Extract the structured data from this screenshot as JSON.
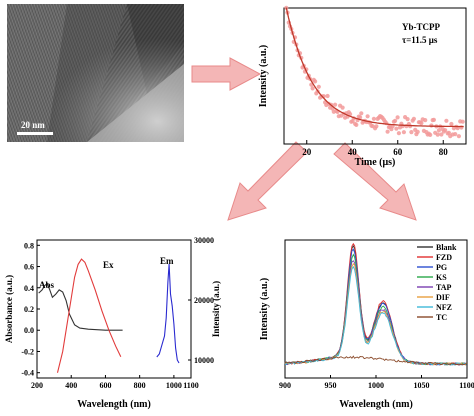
{
  "colors": {
    "arrow_fill": "#f4b6b6",
    "arrow_stroke": "#e88a8a",
    "decay_points": "#f29a9a",
    "decay_fit": "#c0392b",
    "abs": "#333333",
    "ex": "#e23b3b",
    "em": "#2a2ad0"
  },
  "tem_panel": {
    "scalebar_label": "20 nm"
  },
  "decay_panel": {
    "chart_data": {
      "type": "scatter",
      "title": "",
      "xlabel": "Time (μs)",
      "ylabel": "Intensity (a.u.)",
      "xlim": [
        10,
        90
      ],
      "xticks": [
        "20",
        "40",
        "60",
        "80"
      ],
      "annotations": [
        "Yb-TCPP",
        "τ=11.5 μs"
      ],
      "series": [
        {
          "values": [
            [
              12,
              1.0
            ],
            [
              20,
              0.55
            ],
            [
              30,
              0.32
            ],
            [
              40,
              0.19
            ],
            [
              50,
              0.12
            ],
            [
              60,
              0.07
            ],
            [
              70,
              0.05
            ],
            [
              80,
              0.04
            ],
            [
              88,
              0.03
            ]
          ]
        }
      ]
    }
  },
  "absem_panel": {
    "chart_data": {
      "type": "line",
      "xlabel": "Wavelength (nm)",
      "ylabel_left": "Absorbance (a.u.)",
      "ylabel_right": "Intensity (a.u.)",
      "xlim": [
        200,
        1100
      ],
      "ylim_left": [
        -0.45,
        0.85
      ],
      "ylim_right": [
        7000,
        30000
      ],
      "xticks": [
        "200",
        "400",
        "600",
        "800",
        "1000",
        "1100"
      ],
      "yticks_left": [
        "0.8",
        "0.6",
        "0.4",
        "0.2",
        "0.0",
        "-0.2",
        "-0.4"
      ],
      "yticks_right": [
        "30000",
        "20000",
        "10000"
      ],
      "series": [
        {
          "name": "Abs",
          "x": [
            210,
            230,
            245,
            260,
            275,
            290,
            310,
            330,
            350,
            370,
            390,
            420,
            450,
            500,
            600,
            700
          ],
          "y": [
            0.35,
            0.38,
            0.42,
            0.44,
            0.38,
            0.31,
            0.34,
            0.38,
            0.36,
            0.28,
            0.15,
            0.05,
            0.02,
            0.01,
            0.0,
            0.0
          ]
        },
        {
          "name": "Ex",
          "x": [
            320,
            350,
            380,
            400,
            420,
            440,
            460,
            480,
            500,
            540,
            580,
            620,
            660,
            690
          ],
          "y": [
            -0.4,
            -0.2,
            0.1,
            0.3,
            0.5,
            0.62,
            0.67,
            0.64,
            0.56,
            0.38,
            0.18,
            0.0,
            -0.15,
            -0.25
          ]
        },
        {
          "name": "Em",
          "x": [
            900,
            915,
            930,
            945,
            955,
            965,
            972,
            980,
            990,
            1000,
            1010,
            1020,
            1030
          ],
          "y": [
            10500,
            11000,
            12500,
            14000,
            17000,
            23000,
            26000,
            21000,
            19000,
            16000,
            12000,
            10000,
            9500
          ]
        }
      ]
    }
  },
  "fluor_panel": {
    "chart_data": {
      "type": "line",
      "xlabel": "Wavelength (nm)",
      "ylabel": "Intensity (a.u.)",
      "xlim": [
        900,
        1100
      ],
      "xticks": [
        "900",
        "950",
        "1000",
        "1050",
        "1100"
      ],
      "legend": "top-right",
      "series": [
        {
          "name": "Blank",
          "color": "#333333",
          "peak": 0.97
        },
        {
          "name": "FZD",
          "color": "#e03030",
          "peak": 1.0
        },
        {
          "name": "PG",
          "color": "#2e4fd0",
          "peak": 0.95
        },
        {
          "name": "KS",
          "color": "#2aa84a",
          "peak": 0.9
        },
        {
          "name": "TAP",
          "color": "#7a3fb0",
          "peak": 0.86
        },
        {
          "name": "DIF",
          "color": "#e8a040",
          "peak": 0.83
        },
        {
          "name": "NFZ",
          "color": "#3fb8d8",
          "peak": 0.8
        },
        {
          "name": "TC",
          "color": "#8a4a2a",
          "peak": 0.08
        }
      ]
    }
  }
}
